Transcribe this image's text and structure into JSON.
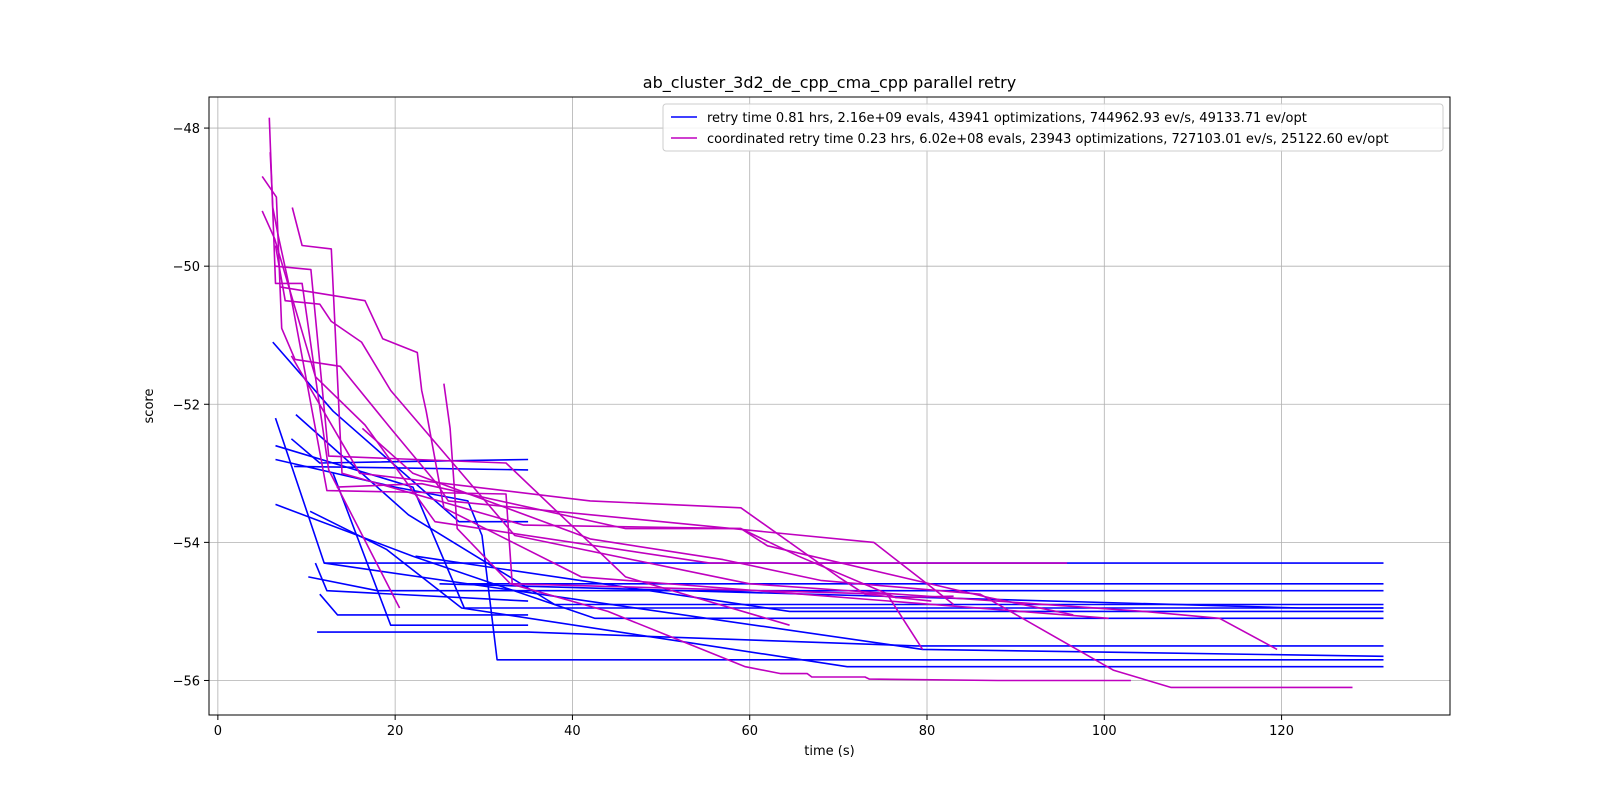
{
  "chart_data": {
    "type": "line",
    "title": "ab_cluster_3d2_de_cpp_cma_cpp parallel retry",
    "xlabel": "time (s)",
    "ylabel": "score",
    "xlim": [
      -1,
      139
    ],
    "ylim": [
      -56.5,
      -47.55
    ],
    "xticks": [
      0,
      20,
      40,
      60,
      80,
      100,
      120
    ],
    "yticks": [
      -56,
      -54,
      -52,
      -50,
      -48
    ],
    "x_tick_labels": [
      "0",
      "20",
      "40",
      "60",
      "80",
      "100",
      "120"
    ],
    "y_tick_labels": [
      "−56",
      "−54",
      "−52",
      "−50",
      "−48"
    ],
    "grid": true,
    "legend_position": "top-right",
    "series": [
      {
        "name": "retry time 0.81 hrs, 2.16e+09 evals, 43941 optimizations, 744962.93 ev/s, 49133.71 ev/opt",
        "color": "#0000ff",
        "runs": [
          [
            [
              6.2,
              -51.1
            ],
            [
              13,
              -52.1
            ],
            [
              27.2,
              -53.7
            ],
            [
              35,
              -53.7
            ]
          ],
          [
            [
              6.5,
              -52.2
            ],
            [
              12,
              -54.3
            ],
            [
              131.5,
              -54.3
            ]
          ],
          [
            [
              8.8,
              -52.15
            ],
            [
              21.5,
              -53.6
            ],
            [
              38,
              -54.9
            ],
            [
              131.5,
              -54.9
            ]
          ],
          [
            [
              6.5,
              -52.6
            ],
            [
              22,
              -53.2
            ],
            [
              27.8,
              -54.95
            ],
            [
              131.5,
              -54.95
            ]
          ],
          [
            [
              6.5,
              -52.8
            ],
            [
              20,
              -53.2
            ],
            [
              28.2,
              -53.4
            ],
            [
              29.8,
              -53.9
            ],
            [
              31.5,
              -55.7
            ],
            [
              131.5,
              -55.7
            ]
          ],
          [
            [
              6.5,
              -53.45
            ],
            [
              22,
              -54.2
            ],
            [
              42.5,
              -55.1
            ],
            [
              131.5,
              -55.1
            ]
          ],
          [
            [
              8.3,
              -52.5
            ],
            [
              11.5,
              -52.85
            ],
            [
              35,
              -52.8
            ]
          ],
          [
            [
              8.6,
              -52.9
            ],
            [
              35,
              -52.95
            ]
          ],
          [
            [
              10.4,
              -53.55
            ],
            [
              19,
              -54.1
            ],
            [
              27.5,
              -54.95
            ],
            [
              71,
              -55.8
            ],
            [
              131.5,
              -55.8
            ]
          ],
          [
            [
              11,
              -54.3
            ],
            [
              12.3,
              -54.7
            ],
            [
              35,
              -54.85
            ]
          ],
          [
            [
              10.2,
              -54.5
            ],
            [
              18,
              -54.7
            ],
            [
              131.5,
              -54.7
            ]
          ],
          [
            [
              11.5,
              -54.75
            ],
            [
              13.5,
              -55.05
            ],
            [
              35,
              -55.05
            ]
          ],
          [
            [
              11.2,
              -55.3
            ],
            [
              35,
              -55.3
            ],
            [
              78.8,
              -55.5
            ],
            [
              131.5,
              -55.5
            ]
          ],
          [
            [
              13,
              -53
            ],
            [
              19.5,
              -55.2
            ],
            [
              35,
              -55.2
            ]
          ],
          [
            [
              22.3,
              -54.2
            ],
            [
              64.5,
              -55.0
            ],
            [
              131.5,
              -55.0
            ]
          ],
          [
            [
              12,
              -54.3
            ],
            [
              79.5,
              -55.55
            ],
            [
              131.5,
              -55.65
            ]
          ],
          [
            [
              25,
              -54.6
            ],
            [
              122,
              -54.95
            ],
            [
              131.5,
              -54.95
            ]
          ],
          [
            [
              28,
              -54.6
            ],
            [
              131.5,
              -54.6
            ]
          ]
        ]
      },
      {
        "name": "coordinated retry time 0.23 hrs, 6.02e+08 evals, 23943 optimizations, 727103.01 ev/s, 25122.60 ev/opt",
        "color": "#bf00bf",
        "runs": [
          [
            [
              5.8,
              -47.85
            ],
            [
              6.5,
              -50.25
            ],
            [
              9.5,
              -50.25
            ],
            [
              12.5,
              -52.95
            ],
            [
              20.5,
              -54.95
            ]
          ],
          [
            [
              5.9,
              -48.35
            ],
            [
              6.2,
              -49.15
            ],
            [
              6.8,
              -49.55
            ],
            [
              7.9,
              -50.2
            ],
            [
              12.3,
              -53.25
            ],
            [
              32.5,
              -53.3
            ],
            [
              33.2,
              -54.6
            ],
            [
              75.5,
              -54.75
            ],
            [
              79.5,
              -55.55
            ]
          ],
          [
            [
              5.0,
              -48.7
            ],
            [
              6.6,
              -49.0
            ],
            [
              7.2,
              -50.9
            ],
            [
              8.7,
              -51.35
            ],
            [
              13.8,
              -51.45
            ],
            [
              19.5,
              -52.35
            ],
            [
              24.7,
              -53.15
            ],
            [
              26.0,
              -53.4
            ],
            [
              74,
              -54.0
            ],
            [
              80,
              -54.6
            ],
            [
              83,
              -54.9
            ]
          ],
          [
            [
              5.0,
              -49.2
            ],
            [
              6.4,
              -49.6
            ],
            [
              11.0,
              -51.6
            ],
            [
              16.6,
              -52.3
            ],
            [
              24.5,
              -53.7
            ],
            [
              55.5,
              -54.3
            ],
            [
              95.8,
              -54.3
            ]
          ],
          [
            [
              8.4,
              -49.15
            ],
            [
              9.5,
              -49.7
            ],
            [
              12.8,
              -49.75
            ],
            [
              14.0,
              -53.0
            ],
            [
              34.5,
              -53.75
            ],
            [
              59,
              -53.8
            ],
            [
              65.5,
              -54.2
            ],
            [
              76.5,
              -54.8
            ],
            [
              83,
              -54.78
            ]
          ],
          [
            [
              7.0,
              -50.3
            ],
            [
              16.6,
              -50.5
            ],
            [
              18.6,
              -51.05
            ],
            [
              22.5,
              -51.25
            ],
            [
              23.0,
              -51.8
            ],
            [
              23.5,
              -52.1
            ],
            [
              25.5,
              -53.5
            ],
            [
              41,
              -54.5
            ],
            [
              100.5,
              -55.1
            ]
          ],
          [
            [
              6.5,
              -49.7
            ],
            [
              7.6,
              -50.5
            ],
            [
              11.5,
              -50.55
            ],
            [
              12.8,
              -50.8
            ],
            [
              16.2,
              -51.1
            ],
            [
              19.5,
              -51.8
            ],
            [
              33.5,
              -53.9
            ],
            [
              60,
              -54.6
            ],
            [
              104.5,
              -55.0
            ],
            [
              113,
              -55.1
            ],
            [
              119.5,
              -55.55
            ]
          ],
          [
            [
              6.5,
              -50.0
            ],
            [
              10.5,
              -50.05
            ],
            [
              12.5,
              -52.75
            ],
            [
              32.5,
              -52.85
            ],
            [
              46,
              -54.5
            ],
            [
              64.5,
              -55.2
            ]
          ],
          [
            [
              8.3,
              -51.3
            ],
            [
              16,
              -53.0
            ],
            [
              42,
              -53.4
            ],
            [
              59,
              -53.5
            ],
            [
              70,
              -54.5
            ],
            [
              73,
              -54.75
            ],
            [
              80.5,
              -54.85
            ]
          ],
          [
            [
              13.4,
              -53.2
            ],
            [
              23,
              -53.15
            ],
            [
              46,
              -53.8
            ],
            [
              59,
              -53.8
            ],
            [
              62,
              -54.05
            ],
            [
              87,
              -54.8
            ],
            [
              96.5,
              -55.05
            ]
          ],
          [
            [
              25.5,
              -51.7
            ],
            [
              26.2,
              -52.35
            ],
            [
              27,
              -53.8
            ],
            [
              33,
              -54.6
            ],
            [
              44,
              -55.0
            ],
            [
              59.5,
              -55.8
            ],
            [
              63.5,
              -55.9
            ],
            [
              66.5,
              -55.9
            ],
            [
              67,
              -55.95
            ],
            [
              73,
              -55.95
            ],
            [
              73.5,
              -55.98
            ],
            [
              88,
              -56.0
            ],
            [
              103,
              -56.0
            ]
          ],
          [
            [
              16.3,
              -52.35
            ],
            [
              22,
              -53.0
            ],
            [
              42,
              -53.95
            ],
            [
              57,
              -54.25
            ],
            [
              68,
              -54.55
            ],
            [
              86,
              -54.75
            ],
            [
              101,
              -55.85
            ],
            [
              107.5,
              -56.1
            ],
            [
              128,
              -56.1
            ]
          ]
        ]
      }
    ]
  }
}
